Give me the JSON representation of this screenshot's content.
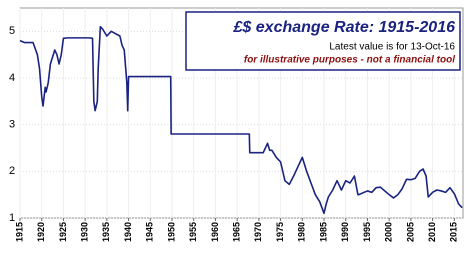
{
  "chart_data": {
    "type": "line",
    "title": "£$ exchange Rate: 1915-2016",
    "subtitle": "Latest value is for 13-Oct-16",
    "annotation": "for illustrative purposes - not a financial tool",
    "xlim": [
      1915,
      2017
    ],
    "ylim": [
      1,
      5.5
    ],
    "xticks": [
      1915,
      1920,
      1925,
      1930,
      1935,
      1940,
      1945,
      1950,
      1955,
      1960,
      1965,
      1970,
      1975,
      1980,
      1985,
      1990,
      1995,
      2000,
      2005,
      2010,
      2015
    ],
    "yticks": [
      1,
      2,
      3,
      4,
      5
    ],
    "grid": true,
    "series": [
      {
        "color": "#1a2380",
        "x": [
          1915,
          1916,
          1918,
          1919,
          1919.5,
          1920,
          1920.3,
          1920.8,
          1921,
          1921.5,
          1922,
          1923,
          1923.5,
          1924,
          1924.5,
          1925,
          1926,
          1931,
          1931.7,
          1932,
          1932.3,
          1932.8,
          1933,
          1933.5,
          1934,
          1935,
          1936,
          1937,
          1938,
          1938.5,
          1939,
          1939.6,
          1939.8,
          1940,
          1949.7,
          1949.8,
          1967.8,
          1967.9,
          1971,
          1971.5,
          1972,
          1972.5,
          1973,
          1974,
          1975,
          1976,
          1977,
          1978,
          1979,
          1980,
          1981,
          1982,
          1983,
          1984,
          1985,
          1985.5,
          1986,
          1987,
          1988,
          1989,
          1990,
          1991,
          1992,
          1992.8,
          1993,
          1995,
          1996,
          1997,
          1998,
          2000,
          2001,
          2002,
          2003,
          2004,
          2005,
          2006,
          2007,
          2007.8,
          2008.5,
          2009,
          2010,
          2011,
          2012,
          2013,
          2014,
          2015,
          2016,
          2016.8
        ],
        "values": [
          4.8,
          4.76,
          4.76,
          4.5,
          4.2,
          3.6,
          3.4,
          3.8,
          3.7,
          3.9,
          4.3,
          4.6,
          4.5,
          4.3,
          4.5,
          4.85,
          4.86,
          4.86,
          4.85,
          3.5,
          3.3,
          3.5,
          4.2,
          5.1,
          5.05,
          4.9,
          5.0,
          4.95,
          4.9,
          4.7,
          4.6,
          3.9,
          3.3,
          4.03,
          4.03,
          2.8,
          2.8,
          2.4,
          2.4,
          2.5,
          2.6,
          2.45,
          2.45,
          2.3,
          2.2,
          1.8,
          1.72,
          1.9,
          2.1,
          2.3,
          2.0,
          1.75,
          1.5,
          1.35,
          1.1,
          1.3,
          1.45,
          1.6,
          1.8,
          1.6,
          1.8,
          1.75,
          1.9,
          1.5,
          1.5,
          1.58,
          1.55,
          1.65,
          1.66,
          1.5,
          1.43,
          1.5,
          1.63,
          1.83,
          1.82,
          1.85,
          2.0,
          2.05,
          1.9,
          1.45,
          1.55,
          1.6,
          1.58,
          1.55,
          1.65,
          1.52,
          1.3,
          1.22
        ]
      }
    ]
  }
}
